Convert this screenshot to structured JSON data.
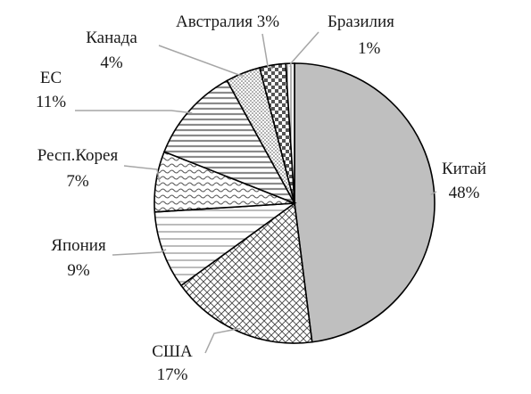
{
  "chart_data": {
    "type": "pie",
    "title": "",
    "slices": [
      {
        "name": "Китай",
        "label": "Китай",
        "pct_label": "48%",
        "value": 48,
        "pattern": "solid-gray"
      },
      {
        "name": "США",
        "label": "США",
        "pct_label": "17%",
        "value": 17,
        "pattern": "crosshatch"
      },
      {
        "name": "Япония",
        "label": "Япония",
        "pct_label": "9%",
        "value": 9,
        "pattern": "horizontal-lines"
      },
      {
        "name": "Респ.Корея",
        "label": "Респ.Корея",
        "pct_label": "7%",
        "value": 7,
        "pattern": "waves"
      },
      {
        "name": "ЕС",
        "label": "ЕС",
        "pct_label": "11%",
        "value": 11,
        "pattern": "dense-horizontal-lines"
      },
      {
        "name": "Канада",
        "label": "Канада",
        "pct_label": "4%",
        "value": 4,
        "pattern": "dots"
      },
      {
        "name": "Австралия",
        "label": "Австралия 3%",
        "pct_label": "",
        "value": 3,
        "pattern": "checkerboard"
      },
      {
        "name": "Бразилия",
        "label": "Бразилия",
        "pct_label": "1%",
        "value": 1,
        "pattern": "vertical-lines"
      }
    ],
    "start": "12 o'clock",
    "direction": "clockwise",
    "legend": "none",
    "colors": {
      "slice_fill_solid": "#bfbfbf",
      "stroke": "#000000",
      "leader": "#a6a6a6",
      "text": "#1a1a1a"
    }
  }
}
